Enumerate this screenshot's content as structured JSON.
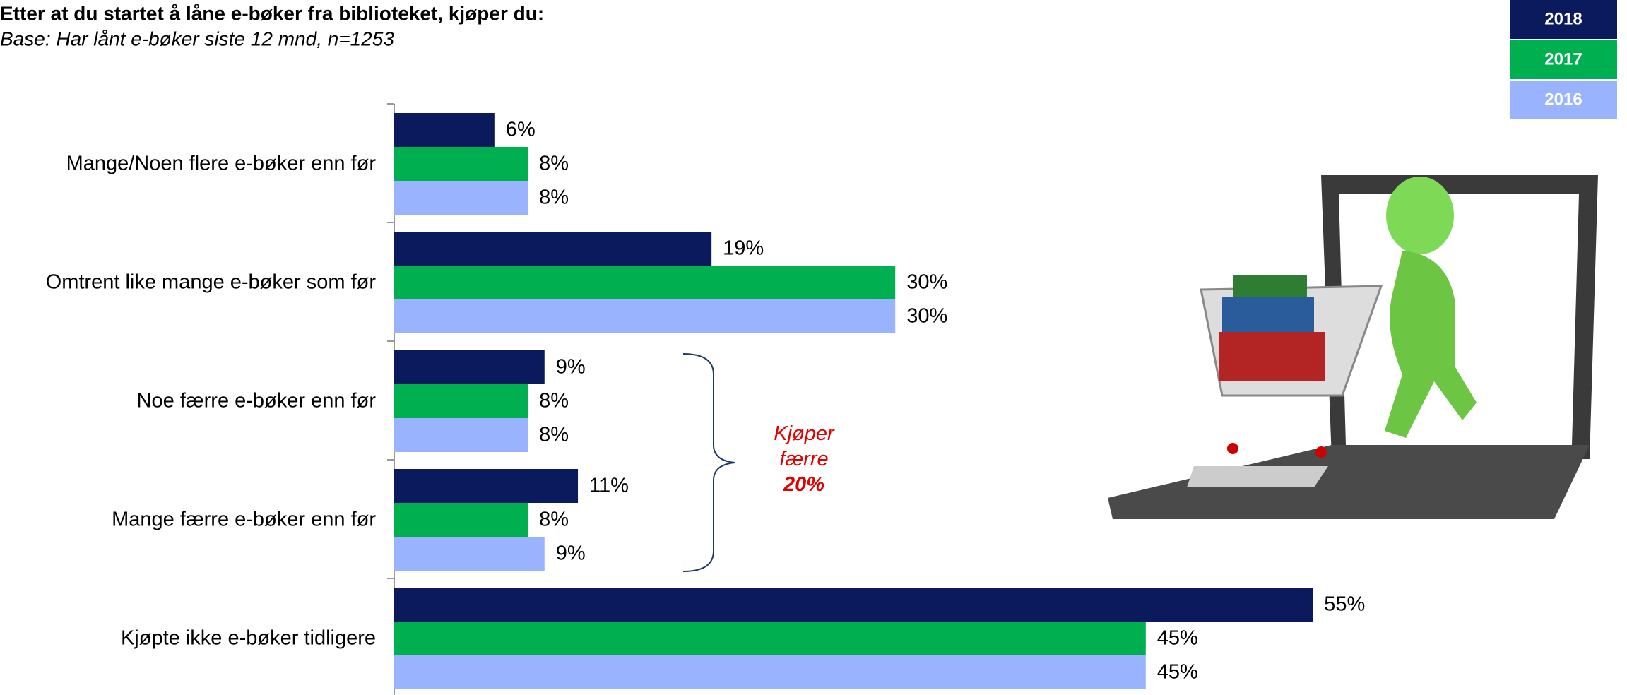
{
  "chart_data": {
    "type": "bar",
    "orientation": "horizontal",
    "title": "Etter at du startet å låne e-bøker fra biblioteket, kjøper du:",
    "subtitle": "Base: Har lånt e-bøker siste 12 mnd, n=1253",
    "categories": [
      "Mange/Noen flere e-bøker enn før",
      "Omtrent like mange e-bøker som før",
      "Noe færre e-bøker enn før",
      "Mange færre e-bøker enn før",
      "Kjøpte ikke e-bøker tidligere"
    ],
    "series": [
      {
        "name": "2018",
        "color": "#0a1a5c",
        "values": [
          6,
          19,
          9,
          11,
          55
        ],
        "value_labels": [
          "6%",
          "19%",
          "9%",
          "11%",
          "55%"
        ]
      },
      {
        "name": "2017",
        "color": "#00b050",
        "values": [
          8,
          30,
          8,
          8,
          45
        ],
        "value_labels": [
          "8%",
          "30%",
          "8%",
          "8%",
          "45%"
        ]
      },
      {
        "name": "2016",
        "color": "#99b3ff",
        "values": [
          8,
          30,
          8,
          9,
          45
        ],
        "value_labels": [
          "8%",
          "30%",
          "8%",
          "9%",
          "45%"
        ]
      }
    ],
    "xlim": [
      0,
      100
    ],
    "legend": "top-right",
    "annotation": {
      "text": "Kjøper færre",
      "value_label": "20%",
      "color": "#e00000"
    }
  }
}
